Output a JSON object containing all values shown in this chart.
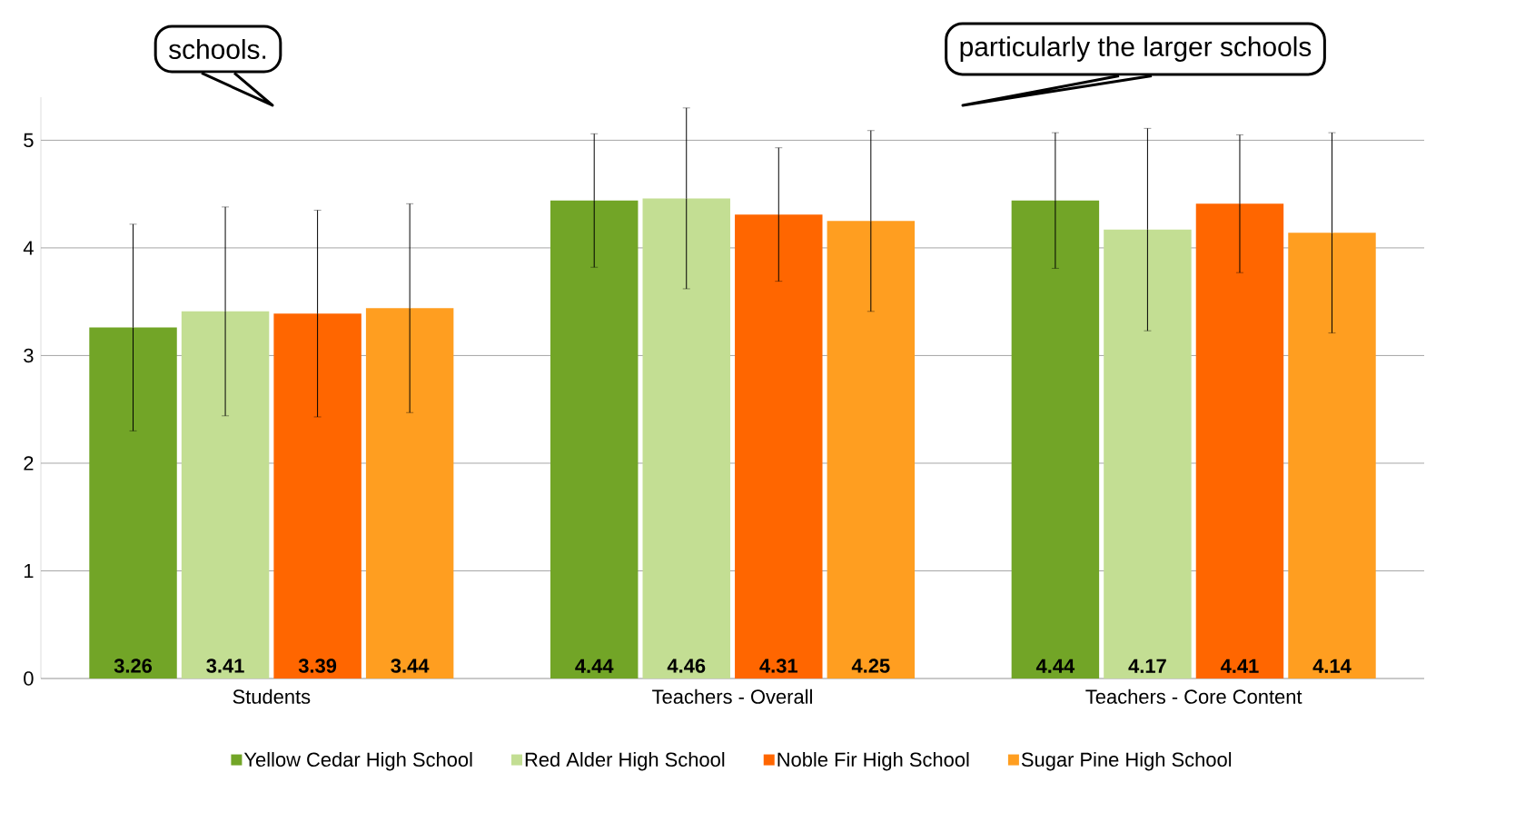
{
  "chart_data": {
    "type": "bar",
    "categories": [
      "Students",
      "Teachers - Overall",
      "Teachers - Core Content"
    ],
    "series": [
      {
        "name": "Yellow Cedar High School",
        "color": "#72a527",
        "values": [
          3.26,
          4.44,
          4.44
        ],
        "errors": [
          0.96,
          0.62,
          0.63
        ]
      },
      {
        "name": "Red Alder High School",
        "color": "#c3de93",
        "values": [
          3.41,
          4.46,
          4.17
        ],
        "errors": [
          0.97,
          0.84,
          0.94
        ]
      },
      {
        "name": "Noble Fir High School",
        "color": "#ff6600",
        "values": [
          3.39,
          4.31,
          4.41
        ],
        "errors": [
          0.96,
          0.62,
          0.64
        ]
      },
      {
        "name": "Sugar Pine High School",
        "color": "#ff9e20",
        "values": [
          3.44,
          4.25,
          4.14
        ],
        "errors": [
          0.97,
          0.84,
          0.93
        ]
      }
    ],
    "ylim": [
      0,
      5.4
    ],
    "yticks": [
      0,
      1,
      2,
      3,
      4,
      5
    ],
    "grid": "y",
    "legend": "bottom",
    "data_labels": true,
    "annotations": [
      "schools.",
      "particularly the larger schools"
    ]
  }
}
